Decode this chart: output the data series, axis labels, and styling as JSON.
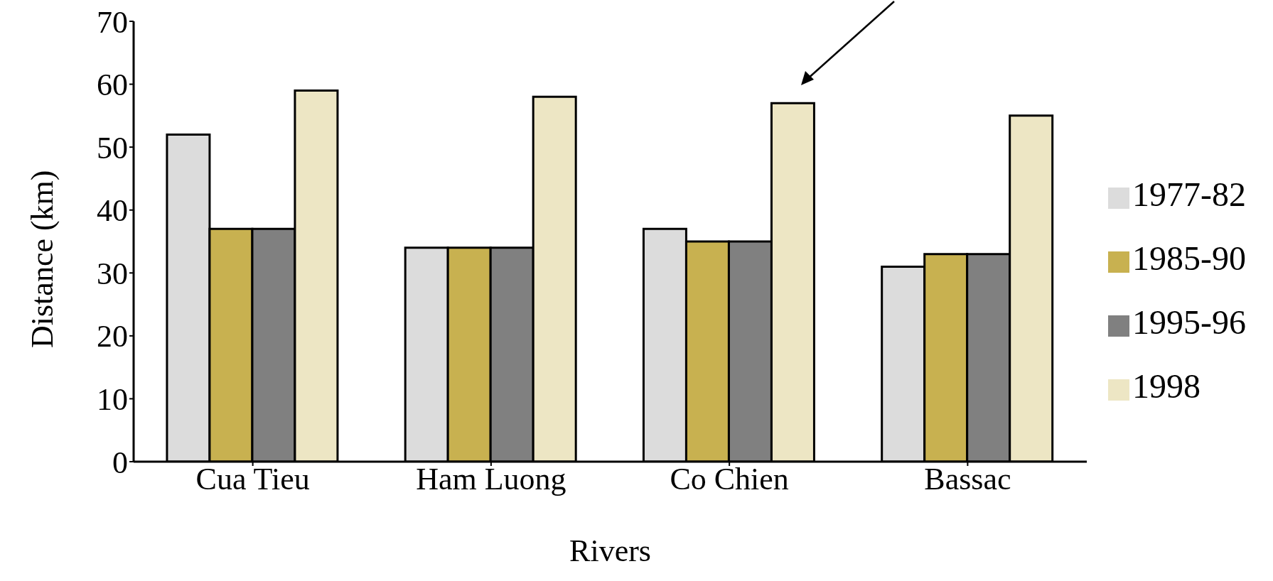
{
  "chart_data": {
    "type": "bar",
    "xlabel": "Rivers",
    "ylabel": "Distance (km)",
    "categories": [
      "Cua Tieu",
      "Ham Luong",
      "Co Chien",
      "Bassac"
    ],
    "series": [
      {
        "name": "1977-82",
        "color": "#dcdcdc",
        "values": [
          52,
          34,
          37,
          31
        ]
      },
      {
        "name": "1985-90",
        "color": "#c8b150",
        "values": [
          37,
          34,
          35,
          33
        ]
      },
      {
        "name": "1995-96",
        "color": "#808080",
        "values": [
          37,
          34,
          35,
          33
        ]
      },
      {
        "name": "1998",
        "color": "#ede6c4",
        "values": [
          59,
          58,
          57,
          55
        ]
      }
    ],
    "ylim": [
      0,
      70
    ],
    "yticks": [
      0,
      10,
      20,
      30,
      40,
      50,
      60,
      70
    ],
    "grid": false,
    "legend": "right"
  }
}
